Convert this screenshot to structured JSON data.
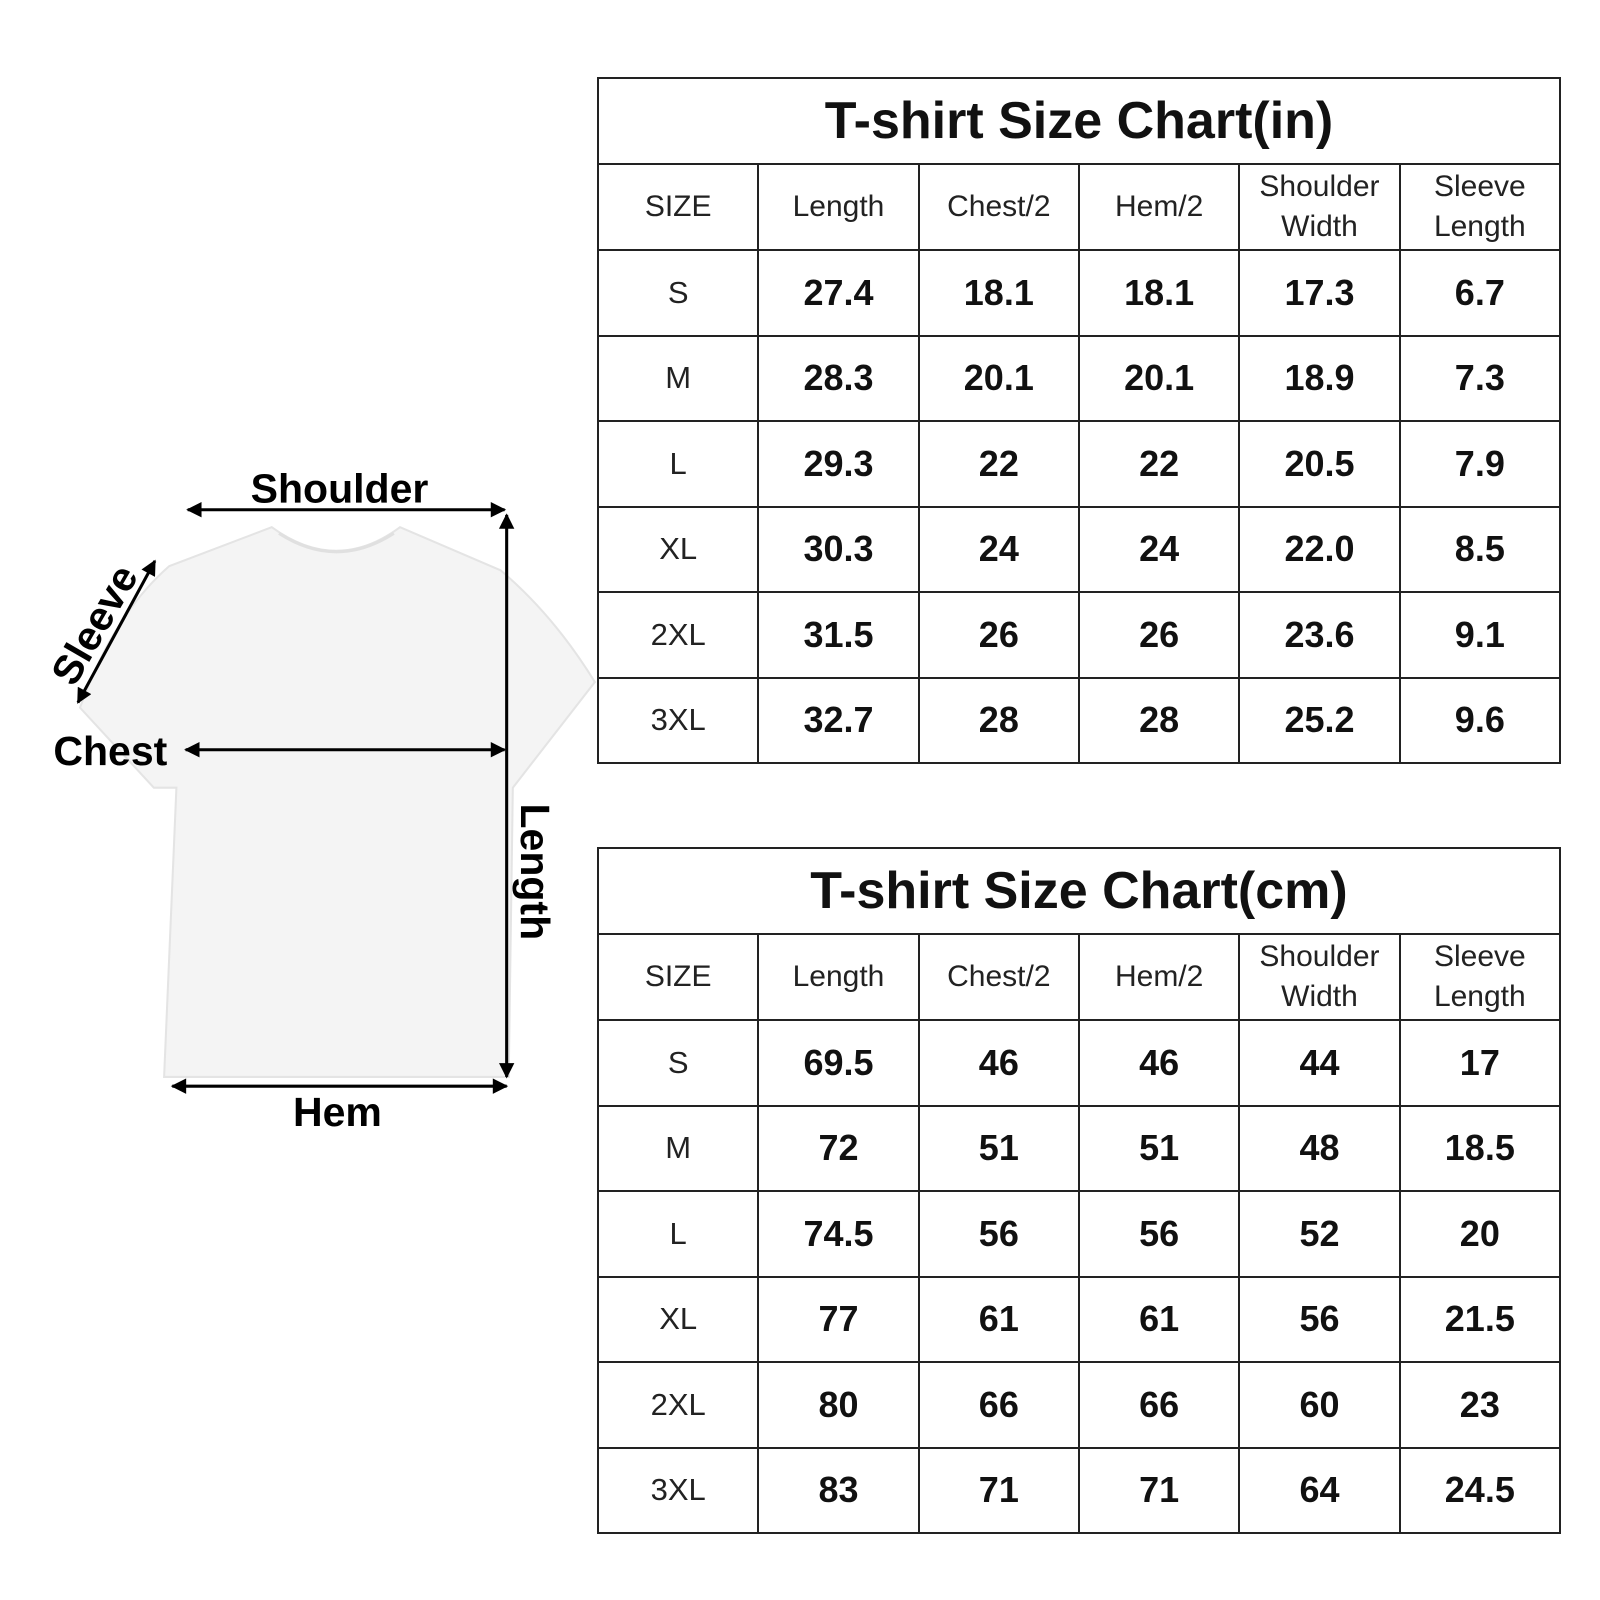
{
  "diagram": {
    "labels": {
      "shoulder": "Shoulder",
      "sleeve": "Sleeve",
      "chest": "Chest",
      "length": "Length",
      "hem": "Hem"
    },
    "shirt_color": "#f4f4f4"
  },
  "chart_data": [
    {
      "type": "table",
      "title": "T-shirt Size Chart(in)",
      "columns": [
        "SIZE",
        "Length",
        "Chest/2",
        "Hem/2",
        "Shoulder Width",
        "Sleeve Length"
      ],
      "rows": [
        [
          "S",
          "27.4",
          "18.1",
          "18.1",
          "17.3",
          "6.7"
        ],
        [
          "M",
          "28.3",
          "20.1",
          "20.1",
          "18.9",
          "7.3"
        ],
        [
          "L",
          "29.3",
          "22",
          "22",
          "20.5",
          "7.9"
        ],
        [
          "XL",
          "30.3",
          "24",
          "24",
          "22.0",
          "8.5"
        ],
        [
          "2XL",
          "31.5",
          "26",
          "26",
          "23.6",
          "9.1"
        ],
        [
          "3XL",
          "32.7",
          "28",
          "28",
          "25.2",
          "9.6"
        ]
      ]
    },
    {
      "type": "table",
      "title": "T-shirt Size Chart(cm)",
      "columns": [
        "SIZE",
        "Length",
        "Chest/2",
        "Hem/2",
        "Shoulder Width",
        "Sleeve Length"
      ],
      "rows": [
        [
          "S",
          "69.5",
          "46",
          "46",
          "44",
          "17"
        ],
        [
          "M",
          "72",
          "51",
          "51",
          "48",
          "18.5"
        ],
        [
          "L",
          "74.5",
          "56",
          "56",
          "52",
          "20"
        ],
        [
          "XL",
          "77",
          "61",
          "61",
          "56",
          "21.5"
        ],
        [
          "2XL",
          "80",
          "66",
          "66",
          "60",
          "23"
        ],
        [
          "3XL",
          "83",
          "71",
          "71",
          "64",
          "24.5"
        ]
      ]
    }
  ]
}
